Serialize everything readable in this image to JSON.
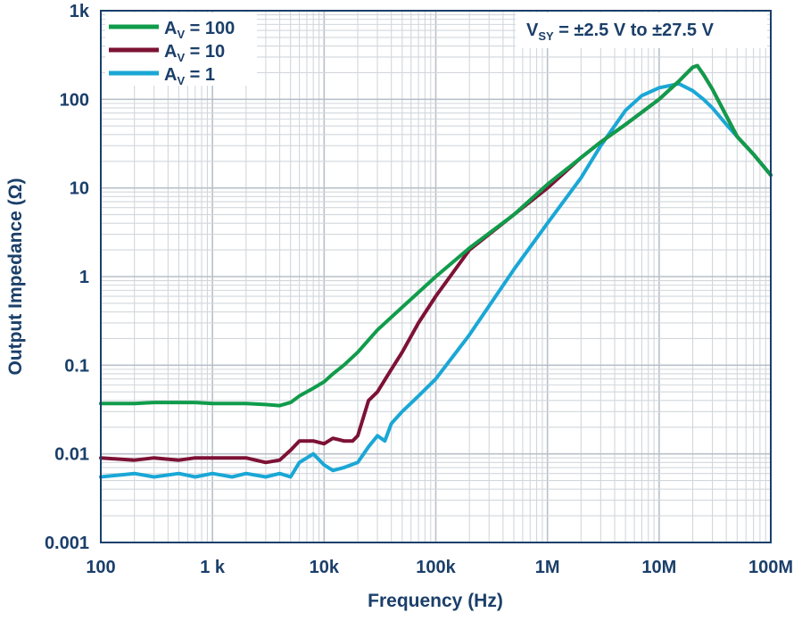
{
  "chart_data": {
    "type": "line",
    "xlabel": "Frequency (Hz)",
    "ylabel": "Output Impedance (Ω)",
    "x_scale": "log",
    "y_scale": "log",
    "xlim": [
      100,
      100000000
    ],
    "ylim": [
      0.001,
      1000
    ],
    "x_ticks": [
      {
        "value": 100,
        "label": "100"
      },
      {
        "value": 1000,
        "label": "1 k"
      },
      {
        "value": 10000,
        "label": "10k"
      },
      {
        "value": 100000,
        "label": "100k"
      },
      {
        "value": 1000000,
        "label": "1M"
      },
      {
        "value": 10000000,
        "label": "10M"
      },
      {
        "value": 100000000,
        "label": "100M"
      }
    ],
    "y_ticks": [
      {
        "value": 0.001,
        "label": "0.001"
      },
      {
        "value": 0.01,
        "label": "0.01"
      },
      {
        "value": 0.1,
        "label": "0.1"
      },
      {
        "value": 1,
        "label": "1"
      },
      {
        "value": 10,
        "label": "10"
      },
      {
        "value": 100,
        "label": "100"
      },
      {
        "value": 1000,
        "label": "1k"
      }
    ],
    "grid": true,
    "legend_position": "top-left",
    "annotation": {
      "main": "V",
      "sub": "SY",
      "rest": " = ±2.5 V to ±27.5 V",
      "position": "top-right"
    },
    "series": [
      {
        "name_main": "A",
        "name_sub": "V",
        "name_rest": " = 100",
        "color": "#109c4b",
        "x": [
          100,
          200,
          300,
          500,
          700,
          1000,
          1500,
          2000,
          3000,
          4000,
          5000,
          6000,
          8000,
          10000,
          12000,
          15000,
          20000,
          30000,
          50000,
          100000,
          200000,
          500000,
          1000000,
          2000000,
          3000000,
          5000000,
          10000000,
          15000000,
          20000000,
          22000000,
          25000000,
          30000000,
          40000000,
          50000000,
          70000000,
          100000000
        ],
        "y": [
          0.037,
          0.037,
          0.038,
          0.038,
          0.038,
          0.037,
          0.037,
          0.037,
          0.036,
          0.035,
          0.038,
          0.045,
          0.055,
          0.065,
          0.08,
          0.1,
          0.14,
          0.25,
          0.45,
          1.0,
          2.1,
          5.0,
          11,
          22,
          33,
          52,
          100,
          160,
          230,
          240,
          190,
          130,
          65,
          38,
          24,
          14
        ]
      },
      {
        "name_main": "A",
        "name_sub": "V",
        "name_rest": " = 10",
        "color": "#7d1235",
        "x": [
          100,
          200,
          300,
          500,
          700,
          1000,
          1500,
          2000,
          3000,
          4000,
          5000,
          6000,
          8000,
          10000,
          12000,
          15000,
          18000,
          20000,
          25000,
          30000,
          40000,
          50000,
          70000,
          100000,
          200000,
          500000,
          1000000,
          2000000,
          3000000,
          5000000,
          10000000,
          15000000,
          20000000,
          22000000,
          25000000,
          30000000,
          40000000,
          50000000,
          70000000,
          100000000
        ],
        "y": [
          0.009,
          0.0085,
          0.009,
          0.0085,
          0.009,
          0.009,
          0.009,
          0.009,
          0.008,
          0.0085,
          0.011,
          0.014,
          0.014,
          0.013,
          0.015,
          0.014,
          0.014,
          0.016,
          0.04,
          0.05,
          0.09,
          0.14,
          0.3,
          0.6,
          2.0,
          5.0,
          10,
          22,
          33,
          52,
          100,
          160,
          230,
          240,
          190,
          130,
          65,
          38,
          24,
          14
        ]
      },
      {
        "name_main": "A",
        "name_sub": "V",
        "name_rest": " = 1",
        "color": "#1aa7d6",
        "x": [
          100,
          200,
          300,
          500,
          700,
          1000,
          1500,
          2000,
          3000,
          4000,
          5000,
          6000,
          8000,
          10000,
          12000,
          15000,
          20000,
          25000,
          30000,
          35000,
          40000,
          50000,
          70000,
          100000,
          200000,
          500000,
          1000000,
          2000000,
          3000000,
          5000000,
          7000000,
          10000000,
          15000000,
          20000000,
          25000000,
          30000000,
          40000000,
          50000000,
          70000000,
          100000000
        ],
        "y": [
          0.0055,
          0.006,
          0.0055,
          0.006,
          0.0055,
          0.006,
          0.0055,
          0.006,
          0.0055,
          0.006,
          0.0055,
          0.008,
          0.01,
          0.0075,
          0.0065,
          0.007,
          0.008,
          0.012,
          0.016,
          0.014,
          0.022,
          0.03,
          0.045,
          0.07,
          0.22,
          1.2,
          4.0,
          13,
          30,
          75,
          110,
          135,
          150,
          125,
          100,
          80,
          52,
          38,
          24,
          14
        ]
      }
    ]
  }
}
